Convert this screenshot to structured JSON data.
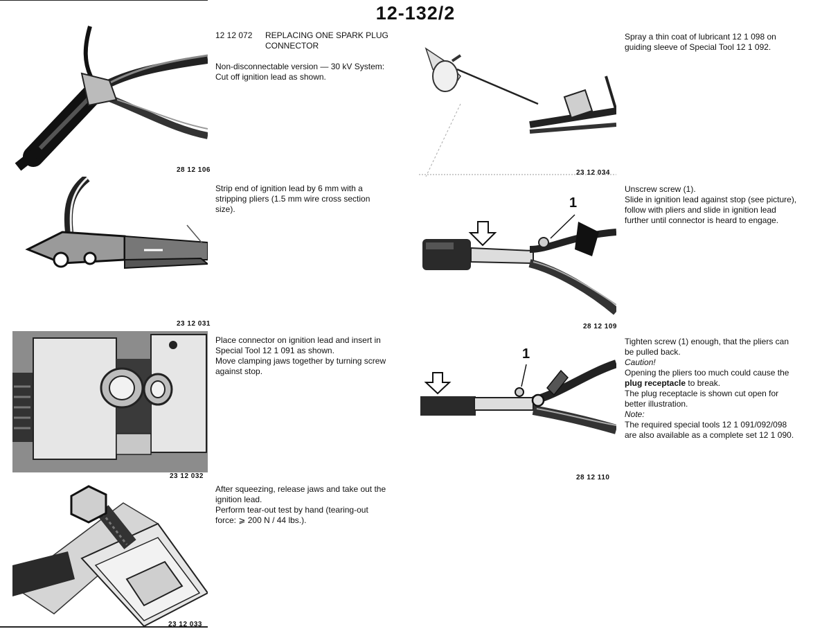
{
  "page_number": "12-132/2",
  "section": {
    "code": "12 12 072",
    "title_line1": "REPLACING ONE SPARK PLUG",
    "title_line2": "CONNECTOR"
  },
  "steps": {
    "s1": [
      "Non-disconnectable version — 30 kV System:",
      "Cut off ignition lead as shown."
    ],
    "s2": [
      "Strip end of ignition lead by 6 mm with a",
      "stripping pliers (1.5 mm wire cross section",
      "size)."
    ],
    "s3": [
      "Place connector on ignition lead and insert in",
      "Special Tool 12 1 091 as shown.",
      "Move clamping jaws together by turning screw",
      "against stop."
    ],
    "s4": [
      "After squeezing, release jaws and take out the",
      "ignition lead.",
      "Perform tear-out test by hand (tearing-out",
      "force: ⩾ 200 N / 44 lbs.)."
    ],
    "s5": [
      "Spray a thin coat of lubricant 12 1 098 on",
      "guiding sleeve of Special Tool 12 1 092."
    ],
    "s6": [
      "Unscrew screw (1).",
      "Slide in ignition lead against stop (see picture),",
      "follow with pliers and slide in ignition lead",
      "further until connector is heard to engage."
    ],
    "s7": {
      "l1": "Tighten screw (1) enough, that the pliers can",
      "l2": "be pulled back.",
      "caution": "Caution!",
      "l3": "Opening the pliers too much could cause the",
      "l4_bold": "plug receptacle",
      "l4_rest": " to break.",
      "l5": "The plug receptacle is shown cut open for",
      "l6": "better illustration.",
      "note": "Note:",
      "l7": "The required special tools 12 1 091/092/098",
      "l8": "are also available as a complete set 12 1 090."
    }
  },
  "figures": {
    "f1": "28 12 106",
    "f2": "23 12 031",
    "f3": "23 12 032",
    "f4": "23 12 033",
    "f5": "23 12 034",
    "f6": "28 12 109",
    "f7": "28 12 110"
  },
  "callouts": {
    "fig6": "1",
    "fig7": "1"
  }
}
